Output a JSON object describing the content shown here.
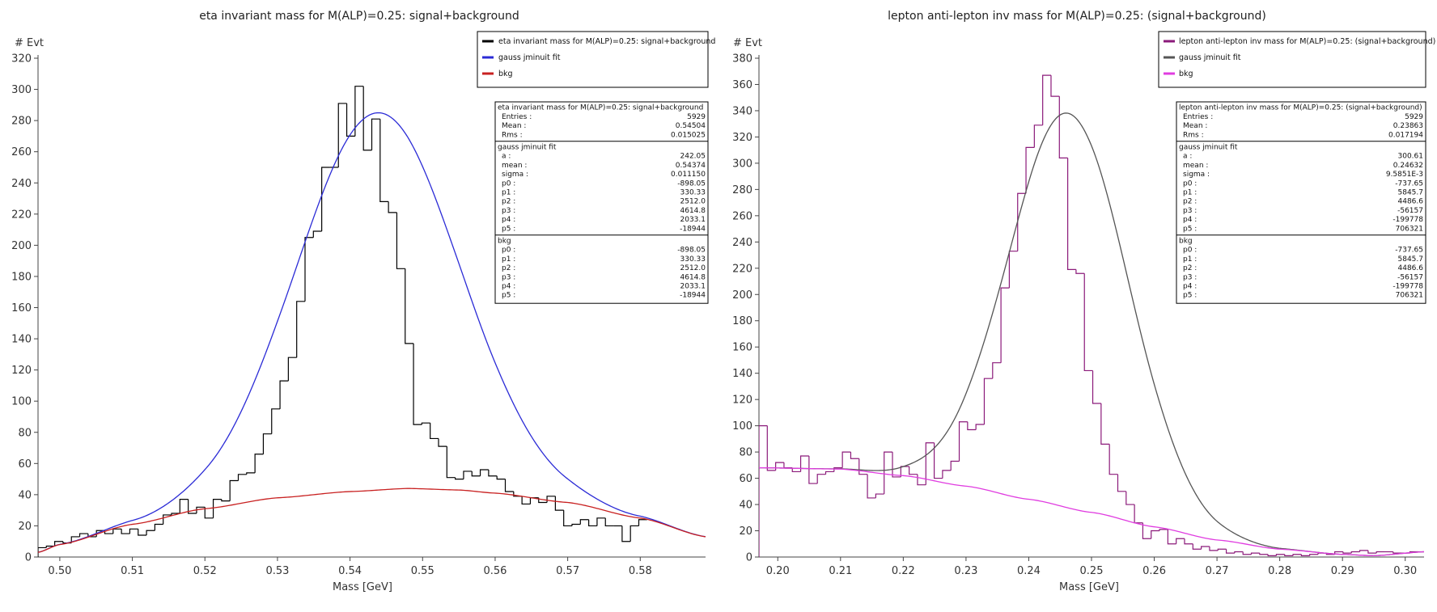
{
  "charts": [
    {
      "title": "eta invariant mass for M(ALP)=0.25: signal+background",
      "xlabel": "Mass   [GeV]",
      "ylabel": "# Evt",
      "legend": [
        {
          "label": "eta invariant mass for M(ALP)=0.25: signal+background",
          "color": "#000000"
        },
        {
          "label": "gauss jminuit fit",
          "color": "#2b2bd6"
        },
        {
          "label": "bkg",
          "color": "#c82020"
        }
      ],
      "stats": [
        {
          "header": "eta invariant mass for M(ALP)=0.25: signal+background",
          "rows": [
            [
              "Entries :",
              "5929"
            ],
            [
              "Mean :",
              "0.54504"
            ],
            [
              "Rms :",
              "0.015025"
            ]
          ]
        },
        {
          "header": "gauss jminuit fit",
          "rows": [
            [
              "a :",
              "242.05"
            ],
            [
              "mean :",
              "0.54374"
            ],
            [
              "sigma :",
              "0.011150"
            ],
            [
              "p0 :",
              "-898.05"
            ],
            [
              "p1 :",
              "330.33"
            ],
            [
              "p2 :",
              "2512.0"
            ],
            [
              "p3 :",
              "4614.8"
            ],
            [
              "p4 :",
              "2033.1"
            ],
            [
              "p5 :",
              "-18944"
            ]
          ]
        },
        {
          "header": "bkg",
          "rows": [
            [
              "p0 :",
              "-898.05"
            ],
            [
              "p1 :",
              "330.33"
            ],
            [
              "p2 :",
              "2512.0"
            ],
            [
              "p3 :",
              "4614.8"
            ],
            [
              "p4 :",
              "2033.1"
            ],
            [
              "p5 :",
              "-18944"
            ]
          ]
        }
      ]
    },
    {
      "title": "lepton anti-lepton inv mass for M(ALP)=0.25: (signal+background)",
      "xlabel": "Mass   [GeV]",
      "ylabel": "# Evt",
      "legend": [
        {
          "label": "lepton anti-lepton inv  mass for M(ALP)=0.25: (signal+background)",
          "color": "#8b1a7a"
        },
        {
          "label": "gauss jminuit fit",
          "color": "#555555"
        },
        {
          "label": "bkg",
          "color": "#e03ce0"
        }
      ],
      "stats": [
        {
          "header": "lepton anti-lepton inv  mass for M(ALP)=0.25: (signal+background)",
          "rows": [
            [
              "Entries :",
              "5929"
            ],
            [
              "Mean :",
              "0.23863"
            ],
            [
              "Rms :",
              "0.017194"
            ]
          ]
        },
        {
          "header": "gauss jminuit fit",
          "rows": [
            [
              "a :",
              "300.61"
            ],
            [
              "mean :",
              "0.24632"
            ],
            [
              "sigma :",
              "9.5851E-3"
            ],
            [
              "p0 :",
              "-737.65"
            ],
            [
              "p1 :",
              "5845.7"
            ],
            [
              "p2 :",
              "4486.6"
            ],
            [
              "p3 :",
              "-56157"
            ],
            [
              "p4 :",
              "-199778"
            ],
            [
              "p5 :",
              "706321"
            ]
          ]
        },
        {
          "header": "bkg",
          "rows": [
            [
              "p0 :",
              "-737.65"
            ],
            [
              "p1 :",
              "5845.7"
            ],
            [
              "p2 :",
              "4486.6"
            ],
            [
              "p3 :",
              "-56157"
            ],
            [
              "p4 :",
              "-199778"
            ],
            [
              "p5 :",
              "706321"
            ]
          ]
        }
      ]
    }
  ],
  "chart_data": [
    {
      "type": "histogram",
      "title": "eta invariant mass for M(ALP)=0.25: signal+background",
      "xlabel": "Mass   [GeV]",
      "ylabel": "# Evt",
      "xlim": [
        0.497,
        0.589
      ],
      "ylim": [
        0,
        320
      ],
      "xticks": [
        0.5,
        0.51,
        0.52,
        0.53,
        0.54,
        0.55,
        0.56,
        0.57,
        0.58
      ],
      "yticks": [
        0,
        20,
        40,
        60,
        80,
        100,
        120,
        140,
        160,
        180,
        200,
        220,
        240,
        260,
        280,
        300,
        320
      ],
      "xtick_labels": [
        "0.50",
        "0.51",
        "0.52",
        "0.53",
        "0.54",
        "0.55",
        "0.56",
        "0.57",
        "0.58"
      ],
      "bin_edges_start": 0.497,
      "bin_width": 0.00115,
      "counts": [
        6,
        7,
        10,
        9,
        13,
        15,
        13,
        17,
        15,
        18,
        15,
        18,
        14,
        17,
        21,
        27,
        28,
        37,
        28,
        32,
        25,
        37,
        36,
        49,
        53,
        54,
        66,
        79,
        95,
        113,
        128,
        164,
        205,
        209,
        250,
        250,
        291,
        270,
        302,
        261,
        281,
        228,
        221,
        185,
        137,
        85,
        86,
        76,
        71,
        51,
        50,
        55,
        52,
        56,
        52,
        50,
        42,
        39,
        34,
        38,
        35,
        39,
        30,
        20,
        21,
        24,
        20,
        25,
        20,
        20,
        10,
        20,
        24
      ],
      "series": [
        {
          "name": "eta invariant mass for M(ALP)=0.25: signal+background",
          "color": "#000000",
          "kind": "histogram"
        },
        {
          "name": "gauss jminuit fit",
          "color": "#2b2bd6",
          "kind": "curve",
          "amp": 242.05,
          "mean": 0.54374,
          "sigma": 0.01115
        },
        {
          "name": "bkg",
          "color": "#c82020",
          "kind": "curve",
          "points": [
            [
              0.497,
              3
            ],
            [
              0.5,
              8
            ],
            [
              0.51,
              21
            ],
            [
              0.52,
              31
            ],
            [
              0.53,
              38
            ],
            [
              0.54,
              42
            ],
            [
              0.548,
              44
            ],
            [
              0.555,
              43
            ],
            [
              0.56,
              41
            ],
            [
              0.57,
              35
            ],
            [
              0.58,
              25
            ],
            [
              0.589,
              13
            ]
          ]
        }
      ]
    },
    {
      "type": "histogram",
      "title": "lepton anti-lepton inv mass for M(ALP)=0.25: (signal+background)",
      "xlabel": "Mass   [GeV]",
      "ylabel": "# Evt",
      "xlim": [
        0.197,
        0.303
      ],
      "ylim": [
        0,
        380
      ],
      "xticks": [
        0.2,
        0.21,
        0.22,
        0.23,
        0.24,
        0.25,
        0.26,
        0.27,
        0.28,
        0.29,
        0.3
      ],
      "yticks": [
        0,
        20,
        40,
        60,
        80,
        100,
        120,
        140,
        160,
        180,
        200,
        220,
        240,
        260,
        280,
        300,
        320,
        340,
        360,
        380
      ],
      "xtick_labels": [
        "0.20",
        "0.21",
        "0.22",
        "0.23",
        "0.24",
        "0.25",
        "0.26",
        "0.27",
        "0.28",
        "0.29",
        "0.30"
      ],
      "bin_edges_start": 0.197,
      "bin_width": 0.00133,
      "counts": [
        100,
        66,
        72,
        68,
        65,
        77,
        56,
        63,
        65,
        68,
        80,
        75,
        63,
        45,
        48,
        80,
        61,
        69,
        63,
        55,
        87,
        60,
        66,
        73,
        103,
        97,
        101,
        136,
        148,
        205,
        233,
        277,
        312,
        329,
        367,
        351,
        304,
        219,
        216,
        142,
        117,
        86,
        63,
        50,
        40,
        26,
        14,
        20,
        21,
        10,
        14,
        10,
        6,
        8,
        5,
        6,
        3,
        4,
        2,
        3,
        2,
        1,
        2,
        1,
        2,
        1,
        2,
        3,
        2,
        4,
        3,
        4,
        5,
        3,
        4,
        4,
        3,
        3,
        4,
        4
      ],
      "series": [
        {
          "name": "lepton anti-lepton inv  mass for M(ALP)=0.25: (signal+background)",
          "color": "#8b1a7a",
          "kind": "histogram"
        },
        {
          "name": "gauss jminuit fit",
          "color": "#555555",
          "kind": "curve",
          "amp": 300.61,
          "mean": 0.24632,
          "sigma": 0.0095851
        },
        {
          "name": "bkg",
          "color": "#e03ce0",
          "kind": "curve",
          "points": [
            [
              0.197,
              68
            ],
            [
              0.21,
              67
            ],
            [
              0.22,
              62
            ],
            [
              0.23,
              54
            ],
            [
              0.24,
              44
            ],
            [
              0.25,
              34
            ],
            [
              0.26,
              23
            ],
            [
              0.27,
              13
            ],
            [
              0.28,
              6
            ],
            [
              0.29,
              2
            ],
            [
              0.295,
              1
            ],
            [
              0.303,
              4
            ]
          ]
        }
      ]
    }
  ]
}
